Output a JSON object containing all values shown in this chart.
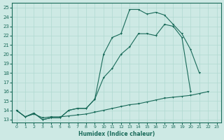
{
  "xlabel": "Humidex (Indice chaleur)",
  "xlim": [
    -0.5,
    23.5
  ],
  "ylim": [
    12.7,
    25.5
  ],
  "ytick_values": [
    13,
    14,
    15,
    16,
    17,
    18,
    19,
    20,
    21,
    22,
    23,
    24,
    25
  ],
  "xtick_values": [
    0,
    1,
    2,
    3,
    4,
    5,
    6,
    7,
    8,
    9,
    10,
    11,
    12,
    13,
    14,
    15,
    16,
    17,
    18,
    19,
    20,
    21,
    22,
    23
  ],
  "bg_color": "#cde9e4",
  "line_color": "#1a6b5a",
  "grid_color": "#b0d8d0",
  "curve_upper_x": [
    0,
    1,
    2,
    3,
    4,
    5,
    6,
    7,
    8,
    9,
    10,
    11,
    12,
    13,
    14,
    15,
    16,
    17,
    18,
    19,
    20,
    21
  ],
  "curve_upper_y": [
    14.0,
    13.3,
    13.7,
    13.0,
    13.2,
    13.2,
    14.0,
    14.2,
    14.2,
    15.2,
    20.0,
    21.8,
    22.2,
    24.8,
    24.8,
    24.3,
    24.5,
    24.2,
    23.2,
    22.2,
    20.5,
    18.0
  ],
  "curve_mid_x": [
    0,
    1,
    2,
    3,
    4,
    5,
    6,
    7,
    8,
    9,
    10,
    11,
    12,
    13,
    14,
    15,
    16,
    17,
    18,
    19,
    20
  ],
  "curve_mid_y": [
    14.0,
    13.3,
    13.7,
    13.0,
    13.2,
    13.2,
    14.0,
    14.2,
    14.2,
    15.2,
    17.5,
    18.5,
    20.0,
    20.8,
    22.2,
    22.2,
    22.0,
    23.2,
    23.0,
    21.8,
    16.0
  ],
  "curve_low_x": [
    0,
    1,
    2,
    3,
    4,
    5,
    6,
    7,
    8,
    9,
    10,
    11,
    12,
    13,
    14,
    15,
    16,
    17,
    18,
    19,
    20,
    21,
    22
  ],
  "curve_low_y": [
    14.0,
    13.3,
    13.6,
    13.2,
    13.3,
    13.3,
    13.4,
    13.5,
    13.6,
    13.8,
    14.0,
    14.2,
    14.4,
    14.6,
    14.7,
    14.9,
    15.1,
    15.3,
    15.4,
    15.5,
    15.6,
    15.8,
    16.0
  ]
}
